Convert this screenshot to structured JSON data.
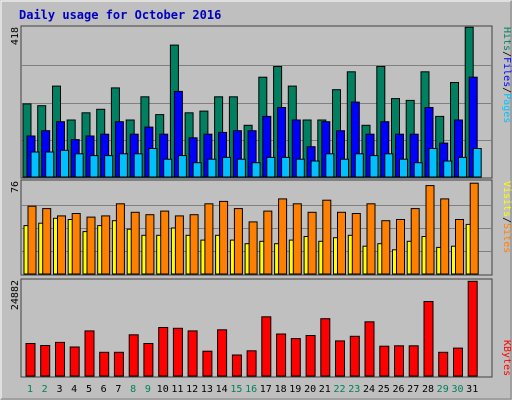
{
  "title": "Daily usage for October 2016",
  "colors": {
    "background": "#bfbfbf",
    "plot": "#c0c0c0",
    "title": "#0000c0",
    "hits": "#008060",
    "files": "#0000ff",
    "pages": "#00c0ff",
    "visits": "#ffff00",
    "sites": "#ff8000",
    "kbytes": "#ff0000",
    "weekday_label": "#000000",
    "weekend_label": "#00805c"
  },
  "labels": {
    "hits": "Hits",
    "files": "Files",
    "pages": "Pages",
    "visits": "Visits",
    "sites": "Sites",
    "kbytes": "KBytes",
    "sep": "/"
  },
  "chart_data": [
    {
      "type": "bar",
      "panel": "hits-files-pages",
      "ymax": 418,
      "ymax_label": "418",
      "grid": true,
      "categories": [
        "1",
        "2",
        "3",
        "4",
        "5",
        "6",
        "7",
        "8",
        "9",
        "10",
        "11",
        "12",
        "13",
        "14",
        "15",
        "16",
        "17",
        "18",
        "19",
        "20",
        "21",
        "22",
        "23",
        "24",
        "25",
        "26",
        "27",
        "28",
        "29",
        "30",
        "31"
      ],
      "weekend": [
        1,
        2,
        8,
        9,
        15,
        16,
        22,
        23,
        29,
        30
      ],
      "series": [
        {
          "name": "Hits",
          "values": [
            205,
            200,
            255,
            160,
            180,
            190,
            250,
            160,
            225,
            175,
            370,
            180,
            185,
            225,
            225,
            145,
            280,
            310,
            255,
            160,
            160,
            245,
            295,
            145,
            310,
            220,
            215,
            295,
            170,
            265,
            420
          ]
        },
        {
          "name": "Files",
          "values": [
            115,
            130,
            155,
            105,
            115,
            120,
            155,
            120,
            140,
            120,
            240,
            110,
            120,
            125,
            130,
            130,
            170,
            195,
            160,
            85,
            155,
            130,
            210,
            120,
            155,
            120,
            120,
            195,
            95,
            160,
            280
          ]
        },
        {
          "name": "Pages",
          "values": [
            70,
            70,
            75,
            65,
            60,
            60,
            65,
            65,
            80,
            50,
            60,
            40,
            50,
            55,
            50,
            40,
            55,
            55,
            50,
            45,
            65,
            50,
            65,
            60,
            65,
            50,
            40,
            80,
            45,
            55,
            80
          ]
        }
      ]
    },
    {
      "type": "bar",
      "panel": "visits-sites",
      "ymax": 76,
      "ymax_label": "76",
      "grid": true,
      "categories": [
        "1",
        "2",
        "3",
        "4",
        "5",
        "6",
        "7",
        "8",
        "9",
        "10",
        "11",
        "12",
        "13",
        "14",
        "15",
        "16",
        "17",
        "18",
        "19",
        "20",
        "21",
        "22",
        "23",
        "24",
        "25",
        "26",
        "27",
        "28",
        "29",
        "30",
        "31"
      ],
      "series": [
        {
          "name": "Visits",
          "values": [
            40,
            42,
            46,
            45,
            35,
            40,
            44,
            37,
            32,
            32,
            38,
            32,
            28,
            32,
            28,
            25,
            27,
            25,
            28,
            31,
            27,
            30,
            32,
            23,
            25,
            20,
            27,
            31,
            22,
            23,
            41
          ]
        },
        {
          "name": "Sites",
          "values": [
            56,
            54,
            48,
            50,
            47,
            48,
            58,
            51,
            49,
            52,
            48,
            49,
            58,
            60,
            54,
            43,
            52,
            62,
            58,
            51,
            61,
            51,
            50,
            58,
            44,
            45,
            54,
            73,
            62,
            45,
            75
          ]
        }
      ]
    },
    {
      "type": "bar",
      "panel": "kbytes",
      "ymax": 24882,
      "ymax_label": "24882",
      "grid": false,
      "categories": [
        "1",
        "2",
        "3",
        "4",
        "5",
        "6",
        "7",
        "8",
        "9",
        "10",
        "11",
        "12",
        "13",
        "14",
        "15",
        "16",
        "17",
        "18",
        "19",
        "20",
        "21",
        "22",
        "23",
        "24",
        "25",
        "26",
        "27",
        "28",
        "29",
        "30",
        "31"
      ],
      "series": [
        {
          "name": "KBytes",
          "values": [
            8500,
            8000,
            8800,
            7600,
            11800,
            6200,
            6200,
            10800,
            8500,
            12700,
            12500,
            11800,
            6500,
            12100,
            5500,
            6600,
            15500,
            11000,
            9800,
            10600,
            15000,
            9200,
            10400,
            14200,
            7800,
            7900,
            7900,
            19500,
            6200,
            7300,
            24800
          ]
        }
      ]
    }
  ]
}
